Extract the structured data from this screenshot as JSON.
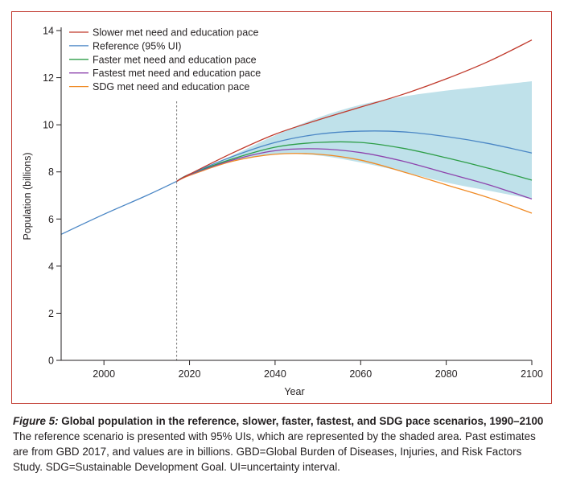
{
  "chart_data": {
    "type": "line",
    "title": "Global population in the reference, slower, faster, fastest, and SDG pace scenarios, 1990–2100",
    "xlabel": "Year",
    "ylabel": "Population (billions)",
    "xlim": [
      1990,
      2100
    ],
    "ylim": [
      0,
      14
    ],
    "xticks": [
      2000,
      2020,
      2040,
      2060,
      2080,
      2100
    ],
    "yticks": [
      0,
      2,
      4,
      6,
      8,
      10,
      12,
      14
    ],
    "grid": false,
    "legend_position": "top-left",
    "vline_x": 2017,
    "history": {
      "x": [
        1990,
        2000,
        2010,
        2017
      ],
      "values": [
        5.35,
        6.2,
        7.0,
        7.6
      ]
    },
    "band": {
      "name": "95% UI",
      "color": "#bfe1ea",
      "x": [
        2017,
        2020,
        2030,
        2040,
        2050,
        2060,
        2070,
        2080,
        2090,
        2100
      ],
      "upper": [
        7.6,
        7.9,
        8.7,
        9.55,
        10.3,
        10.85,
        11.2,
        11.45,
        11.65,
        11.85
      ],
      "lower": [
        7.6,
        7.85,
        8.45,
        8.75,
        8.7,
        8.4,
        8.0,
        7.55,
        7.2,
        6.85
      ]
    },
    "series": [
      {
        "name": "Slower met need and education pace",
        "color": "#c0392b",
        "x": [
          2017,
          2020,
          2030,
          2040,
          2050,
          2060,
          2070,
          2080,
          2090,
          2100
        ],
        "values": [
          7.6,
          7.9,
          8.8,
          9.6,
          10.2,
          10.75,
          11.3,
          11.95,
          12.7,
          13.6
        ]
      },
      {
        "name": "Reference (95% UI)",
        "color": "#4a86c5",
        "x": [
          2017,
          2020,
          2030,
          2040,
          2050,
          2060,
          2070,
          2080,
          2090,
          2100
        ],
        "values": [
          7.6,
          7.9,
          8.65,
          9.25,
          9.6,
          9.73,
          9.7,
          9.5,
          9.2,
          8.8
        ]
      },
      {
        "name": "Faster met need and education pace",
        "color": "#2e9e48",
        "x": [
          2017,
          2020,
          2030,
          2040,
          2050,
          2060,
          2070,
          2080,
          2090,
          2100
        ],
        "values": [
          7.6,
          7.9,
          8.55,
          9.05,
          9.25,
          9.25,
          9.0,
          8.6,
          8.15,
          7.65
        ]
      },
      {
        "name": "Fastest met need and education pace",
        "color": "#8e44ad",
        "x": [
          2017,
          2020,
          2030,
          2040,
          2050,
          2060,
          2070,
          2080,
          2090,
          2100
        ],
        "values": [
          7.6,
          7.88,
          8.5,
          8.9,
          8.98,
          8.82,
          8.45,
          7.95,
          7.45,
          6.85
        ]
      },
      {
        "name": "SDG met need and education pace",
        "color": "#f08a24",
        "x": [
          2017,
          2020,
          2030,
          2040,
          2050,
          2060,
          2070,
          2080,
          2090,
          2100
        ],
        "values": [
          7.6,
          7.85,
          8.45,
          8.75,
          8.75,
          8.5,
          8.0,
          7.45,
          6.9,
          6.25
        ]
      }
    ]
  },
  "caption": {
    "figure_label": "Figure 5:",
    "title": "Global population in the reference, slower, faster, fastest, and SDG pace scenarios, 1990–2100",
    "body": "The reference scenario is presented with 95% UIs, which are represented by the shaded area. Past estimates are from GBD 2017, and values are in billions. GBD=Global Burden of Diseases, Injuries, and Risk Factors Study. SDG=Sustainable Development Goal. UI=uncertainty interval."
  }
}
